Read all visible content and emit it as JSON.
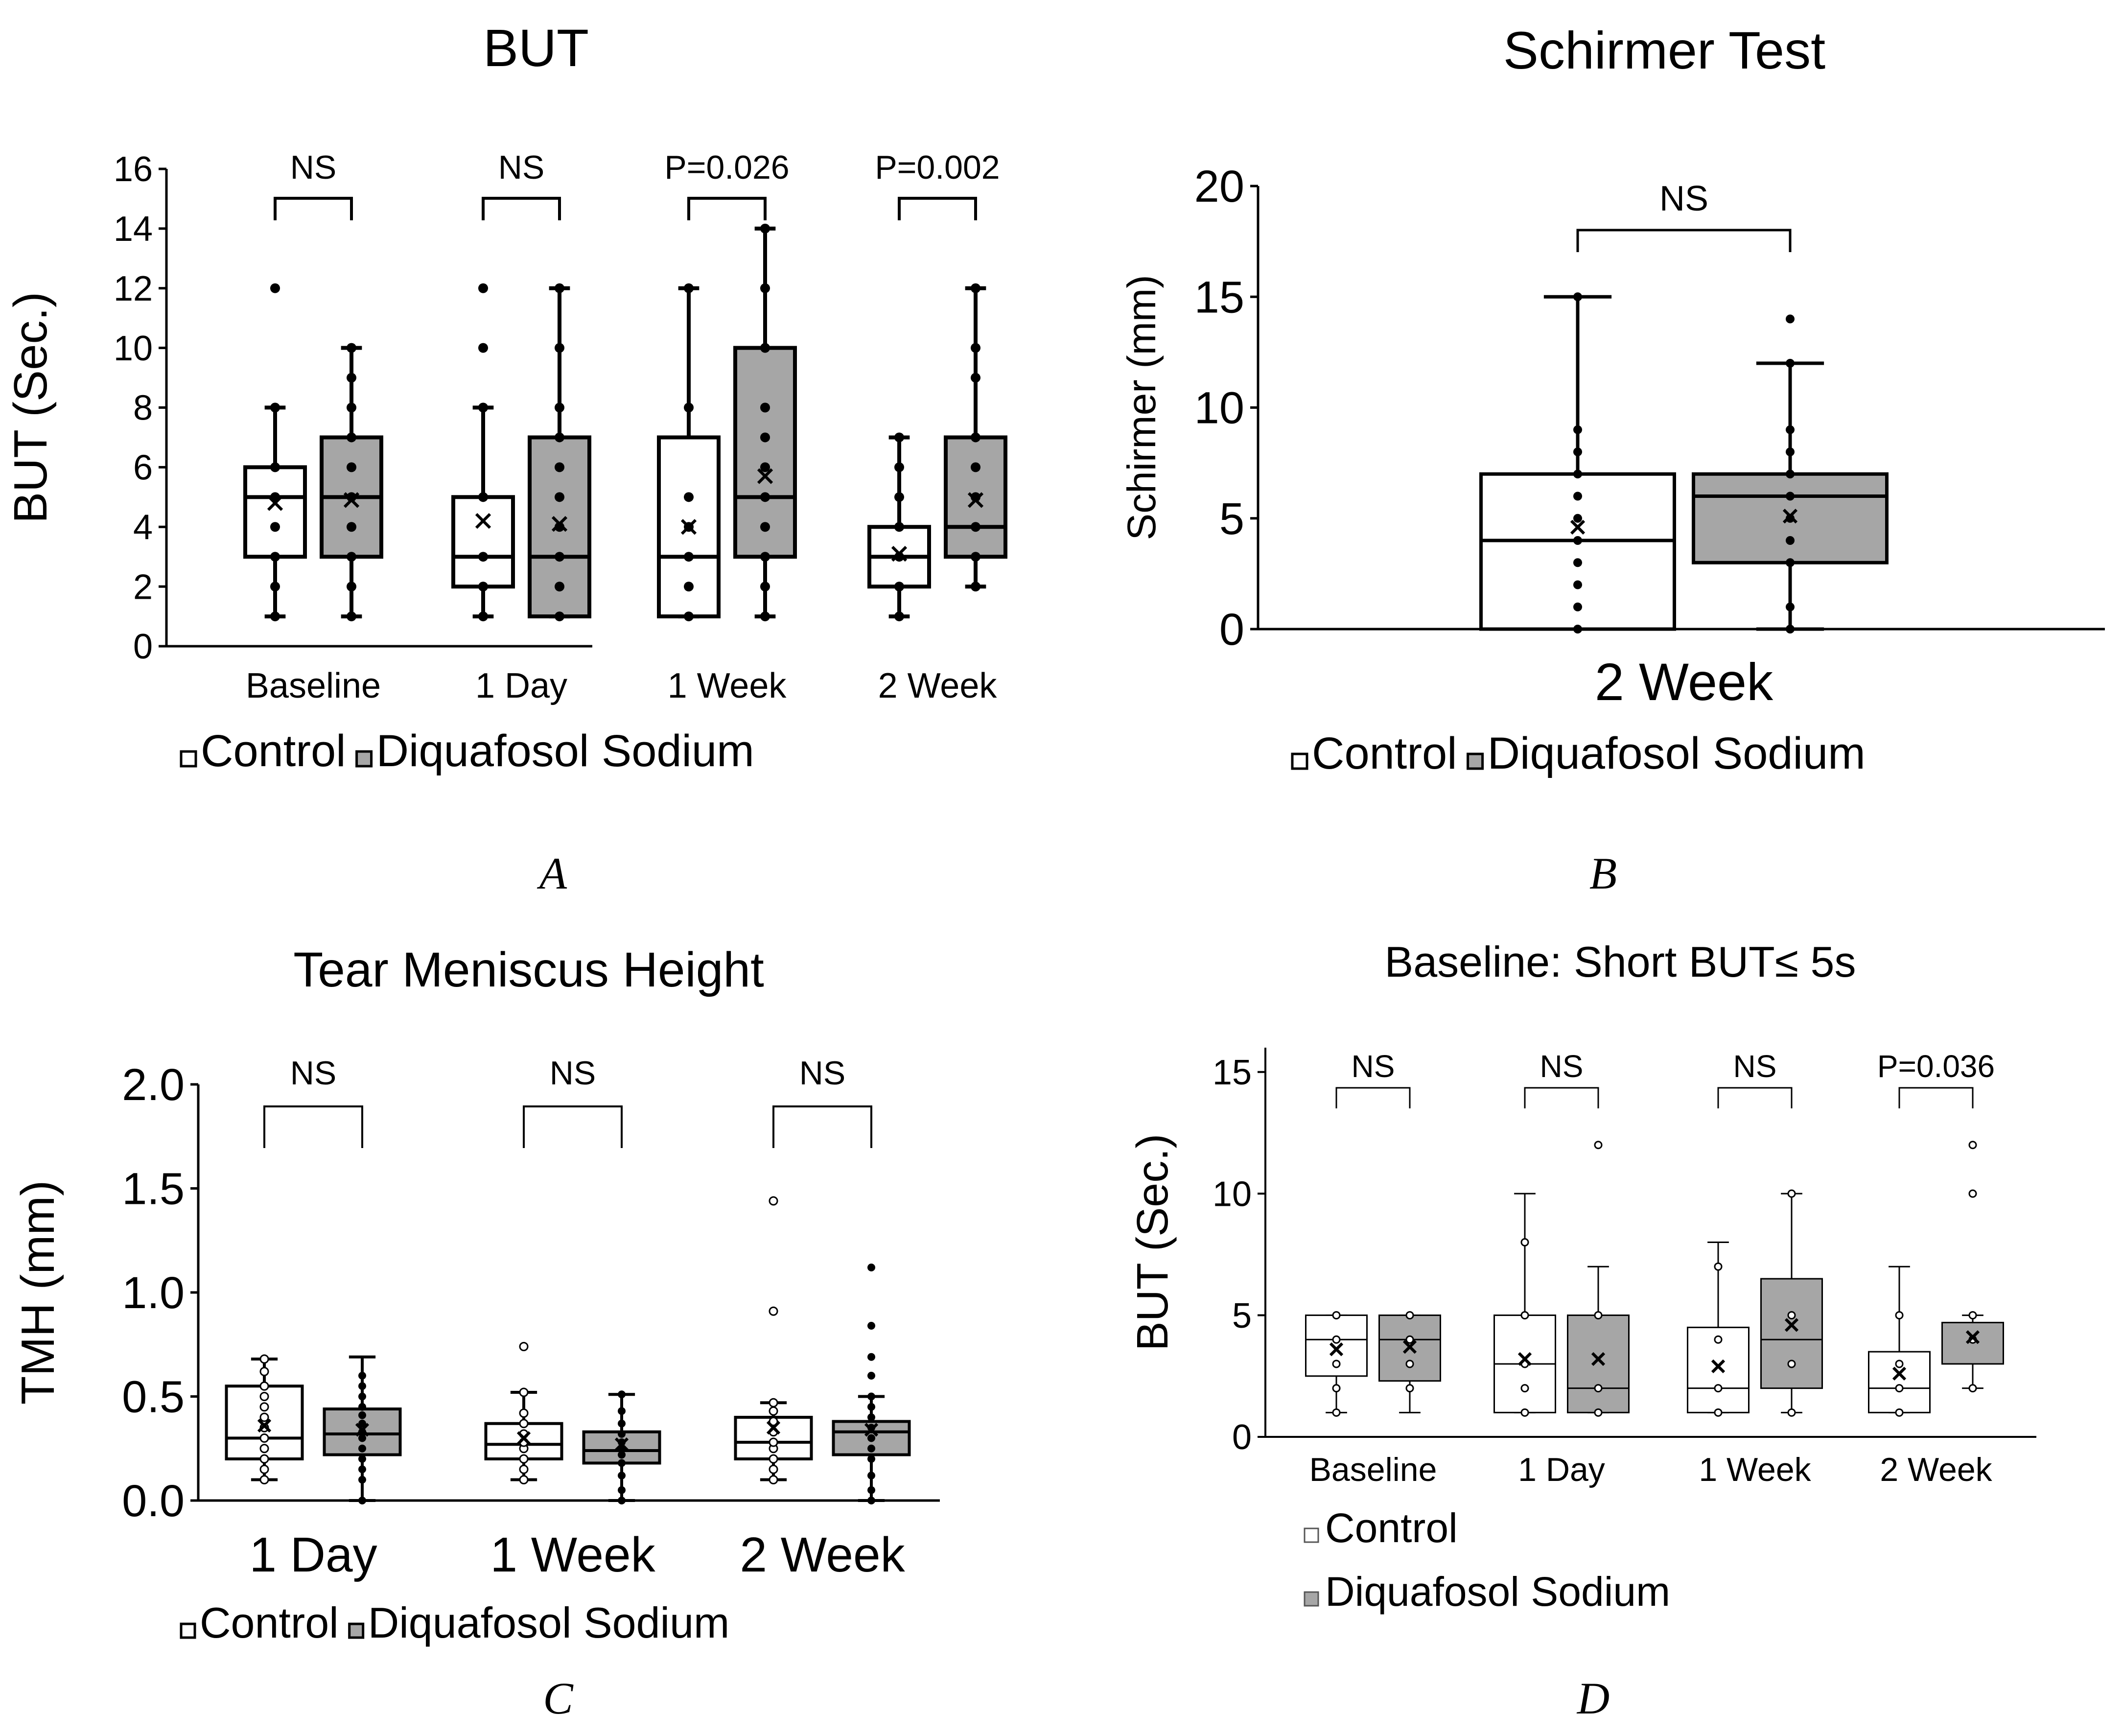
{
  "colors": {
    "control": "#ffffff",
    "diquafosol": "#a6a6a6",
    "axis": "#000000"
  },
  "chart_data": [
    {
      "id": "A",
      "type": "box",
      "title": "BUT",
      "panel_label": "A",
      "ylabel": "BUT (Sec.)",
      "xlabel": "",
      "ylim": [
        0,
        16
      ],
      "yticks": [
        "0",
        "2",
        "4",
        "6",
        "8",
        "10",
        "12",
        "14",
        "16"
      ],
      "categories": [
        "Baseline",
        "1 Day",
        "1 Week",
        "2 Week"
      ],
      "significance": [
        "NS",
        "NS",
        "P=0.026",
        "P=0.002"
      ],
      "legend": [
        "Control",
        "Diquafosol Sodium"
      ],
      "series": [
        {
          "name": "Control",
          "boxes": [
            {
              "min": 1,
              "q1": 3,
              "median": 5,
              "q3": 6,
              "max": 8,
              "mean": 4.8,
              "points": [
                1,
                2,
                3,
                4,
                5,
                6,
                8,
                12
              ]
            },
            {
              "min": 1,
              "q1": 2,
              "median": 3,
              "q3": 5,
              "max": 8,
              "mean": 4.2,
              "points": [
                1,
                2,
                3,
                5,
                8,
                10,
                12
              ]
            },
            {
              "min": 1,
              "q1": 1,
              "median": 3,
              "q3": 7,
              "max": 12,
              "mean": 4.0,
              "points": [
                1,
                2,
                3,
                4,
                5,
                8,
                12
              ]
            },
            {
              "min": 1,
              "q1": 2,
              "median": 3,
              "q3": 4,
              "max": 7,
              "mean": 3.1,
              "points": [
                1,
                2,
                3,
                4,
                5,
                6,
                7
              ]
            }
          ]
        },
        {
          "name": "Diquafosol Sodium",
          "boxes": [
            {
              "min": 1,
              "q1": 3,
              "median": 5,
              "q3": 7,
              "max": 10,
              "mean": 4.9,
              "points": [
                1,
                2,
                3,
                4,
                5,
                6,
                7,
                8,
                9,
                10
              ]
            },
            {
              "min": 1,
              "q1": 1,
              "median": 3,
              "q3": 7,
              "max": 12,
              "mean": 4.1,
              "points": [
                1,
                2,
                3,
                4,
                5,
                6,
                7,
                8,
                10,
                12
              ]
            },
            {
              "min": 1,
              "q1": 3,
              "median": 5,
              "q3": 10,
              "max": 14,
              "mean": 5.7,
              "points": [
                1,
                2,
                3,
                4,
                5,
                6,
                7,
                8,
                10,
                12,
                14
              ]
            },
            {
              "min": 2,
              "q1": 3,
              "median": 4,
              "q3": 7,
              "max": 12,
              "mean": 4.9,
              "points": [
                2,
                3,
                4,
                5,
                6,
                7,
                9,
                10,
                12
              ]
            }
          ]
        }
      ]
    },
    {
      "id": "B",
      "type": "box",
      "title": "Schirmer Test",
      "panel_label": "B",
      "ylabel": "Schirmer (mm)",
      "xlabel": "",
      "ylim": [
        0,
        20
      ],
      "yticks": [
        "0",
        "5",
        "10",
        "15",
        "20"
      ],
      "categories": [
        "2 Week"
      ],
      "significance": [
        "NS"
      ],
      "legend": [
        "Control",
        "Diquafosol Sodium"
      ],
      "series": [
        {
          "name": "Control",
          "boxes": [
            {
              "min": 0,
              "q1": 0,
              "median": 4,
              "q3": 7,
              "max": 15,
              "mean": 4.6,
              "points": [
                0,
                1,
                2,
                3,
                4,
                5,
                6,
                7,
                8,
                9,
                15
              ]
            }
          ]
        },
        {
          "name": "Diquafosol Sodium",
          "boxes": [
            {
              "min": 0,
              "q1": 3,
              "median": 6,
              "q3": 7,
              "max": 12,
              "mean": 5.1,
              "points": [
                0,
                1,
                3,
                4,
                5,
                6,
                7,
                8,
                9,
                12,
                14
              ]
            }
          ]
        }
      ]
    },
    {
      "id": "C",
      "type": "box",
      "title": "Tear Meniscus Height",
      "panel_label": "C",
      "ylabel": "TMH (mm)",
      "xlabel": "",
      "ylim": [
        0,
        2
      ],
      "yticks": [
        "0.0",
        "0.5",
        "1.0",
        "1.5",
        "2.0"
      ],
      "categories": [
        "1 Day",
        "1 Week",
        "2 Week"
      ],
      "significance": [
        "NS",
        "NS",
        "NS"
      ],
      "legend": [
        "Control",
        "Diquafosol Sodium"
      ],
      "series": [
        {
          "name": "Control",
          "boxes": [
            {
              "min": 0.1,
              "q1": 0.2,
              "median": 0.3,
              "q3": 0.55,
              "max": 0.68,
              "mean": 0.36,
              "points": [
                0.1,
                0.15,
                0.2,
                0.25,
                0.3,
                0.35,
                0.4,
                0.45,
                0.5,
                0.55,
                0.62,
                0.68
              ]
            },
            {
              "min": 0.1,
              "q1": 0.2,
              "median": 0.27,
              "q3": 0.37,
              "max": 0.52,
              "mean": 0.3,
              "points": [
                0.1,
                0.15,
                0.2,
                0.25,
                0.28,
                0.32,
                0.37,
                0.42,
                0.52,
                0.74
              ]
            },
            {
              "min": 0.1,
              "q1": 0.2,
              "median": 0.28,
              "q3": 0.4,
              "max": 0.47,
              "mean": 0.35,
              "points": [
                0.1,
                0.15,
                0.2,
                0.25,
                0.28,
                0.33,
                0.38,
                0.43,
                0.47,
                0.91,
                1.44
              ]
            }
          ]
        },
        {
          "name": "Diquafosol Sodium",
          "boxes": [
            {
              "min": 0.0,
              "q1": 0.22,
              "median": 0.32,
              "q3": 0.44,
              "max": 0.69,
              "mean": 0.34,
              "points": [
                0.0,
                0.1,
                0.15,
                0.2,
                0.25,
                0.3,
                0.33,
                0.37,
                0.41,
                0.45,
                0.5,
                0.55,
                0.6
              ]
            },
            {
              "min": 0.0,
              "q1": 0.18,
              "median": 0.24,
              "q3": 0.33,
              "max": 0.51,
              "mean": 0.27,
              "points": [
                0.0,
                0.05,
                0.12,
                0.18,
                0.22,
                0.25,
                0.28,
                0.32,
                0.37,
                0.43,
                0.51
              ]
            },
            {
              "min": 0.0,
              "q1": 0.22,
              "median": 0.33,
              "q3": 0.38,
              "max": 0.5,
              "mean": 0.34,
              "points": [
                0.0,
                0.05,
                0.12,
                0.2,
                0.25,
                0.3,
                0.35,
                0.4,
                0.45,
                0.5,
                0.6,
                0.69,
                0.84,
                1.12
              ]
            }
          ]
        }
      ]
    },
    {
      "id": "D",
      "type": "box",
      "title": "Baseline: Short BUT≤ 5s",
      "panel_label": "D",
      "ylabel": "BUT (Sec.)",
      "xlabel": "",
      "ylim": [
        0,
        16
      ],
      "yticks": [
        "0",
        "5",
        "10",
        "15"
      ],
      "categories": [
        "Baseline",
        "1 Day",
        "1 Week",
        "2 Week"
      ],
      "significance": [
        "NS",
        "NS",
        "NS",
        "P=0.036"
      ],
      "legend": [
        "Control",
        "Diquafosol Sodium"
      ],
      "series": [
        {
          "name": "Control",
          "boxes": [
            {
              "min": 1,
              "q1": 2.5,
              "median": 4,
              "q3": 5,
              "max": 5,
              "mean": 3.6,
              "points": [
                1,
                2,
                3,
                4,
                5
              ]
            },
            {
              "min": 1,
              "q1": 1,
              "median": 3,
              "q3": 5,
              "max": 10,
              "mean": 3.2,
              "points": [
                1,
                2,
                3,
                5,
                8
              ]
            },
            {
              "min": 1,
              "q1": 1,
              "median": 2,
              "q3": 4.5,
              "max": 8,
              "mean": 2.9,
              "points": [
                1,
                2,
                4,
                7
              ]
            },
            {
              "min": 1,
              "q1": 1,
              "median": 2,
              "q3": 3.5,
              "max": 7,
              "mean": 2.6,
              "points": [
                1,
                2,
                3,
                5
              ]
            }
          ]
        },
        {
          "name": "Diquafosol Sodium",
          "boxes": [
            {
              "min": 1,
              "q1": 2.3,
              "median": 4,
              "q3": 5,
              "max": 5,
              "mean": 3.7,
              "points": [
                2,
                3,
                4,
                5
              ]
            },
            {
              "min": 1,
              "q1": 1,
              "median": 2,
              "q3": 5,
              "max": 7,
              "mean": 3.2,
              "points": [
                1,
                2,
                5,
                12
              ]
            },
            {
              "min": 1,
              "q1": 2,
              "median": 4,
              "q3": 6.5,
              "max": 10,
              "mean": 4.6,
              "points": [
                1,
                3,
                5,
                10
              ]
            },
            {
              "min": 2,
              "q1": 3,
              "median": 4.7,
              "q3": 4.7,
              "max": 5,
              "mean": 4.1,
              "points": [
                2,
                4,
                5,
                10,
                12
              ]
            }
          ]
        }
      ]
    }
  ]
}
